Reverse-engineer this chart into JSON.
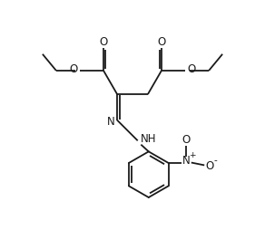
{
  "bg_color": "#ffffff",
  "line_color": "#1a1a1a",
  "line_width": 1.3,
  "font_size": 8.5,
  "figsize": [
    2.92,
    2.54
  ],
  "dpi": 100,
  "xlim": [
    -1,
    11
  ],
  "ylim": [
    -0.5,
    9.0
  ]
}
